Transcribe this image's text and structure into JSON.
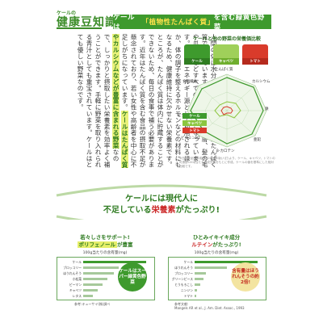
{
  "header": {
    "tag_small": "ケールの",
    "tag_big": "健康豆知識",
    "headline_pre": "ケールは",
    "headline_accent": "「植物性たんぱく質」",
    "headline_post": "を含む緑黄色野菜"
  },
  "body_text": {
    "p1": "人間の体は水分を除くと、ほとんどがたんぱく質でできています。筋肉、内臓、皮膚、髪の毛や爪、骨などすべての体の材料となっています。また、エネルギー源として利用されるほか、体の調子を整えるホルモンなどの材料にもなるため、健康維持に欠かせない栄養素です。",
    "p2": "ところが、たんぱく質は体内に貯蔵することができないため、毎日の食事で補う必要があります。近年はたんぱく質を含む食品の摂取不足が懸念されており、若い女性や高齢者を中心に不足しがちになっています。",
    "hl": "ケールはたんぱく質やカルシウムなどが豊富に含まれる野菜",
    "p3": "なので、しっかりと摂取したい栄養素を効率よく補うことができます。手軽に野菜を取り入れられる青汁としても重宝されています。ケールはとても優しい野菜なのです。"
  },
  "chart": {
    "title": "ケールと他の野菜の栄養価比較",
    "vegetables": [
      {
        "name": "ケール",
        "color": "#3e9a2d"
      },
      {
        "name": "キャベツ",
        "color": "#8cc63f"
      },
      {
        "name": "トマト",
        "color": "#d93b2b"
      }
    ],
    "axes": [
      "たんぱく質",
      "カルシウム",
      "鉄",
      "亜鉛",
      "β-カロテン",
      "ビタミンB1",
      "ビタミンC",
      "食物繊維"
    ],
    "legend": [
      "ケール",
      "キャベツ",
      "トマト"
    ],
    "footnote": "※日本食品標準成分表2020年版(八訂)より、ケール、キャベツ、トマトの可食部100g当たりの成分値をもとに作成。ケールの値を基準にした相対比較です。"
  },
  "middle": {
    "line1": "ケールには現代人に",
    "line2_pre": "不足している",
    "line2_red": "栄養素",
    "line2_post": "がたっぷり!"
  },
  "left_panel": {
    "cap1": "若々しさをサポート!",
    "cap2": "ポリフェノール",
    "cap3": "が豊富",
    "bar_title": "100g当たりの含有量(mg)",
    "rows": [
      "ケール",
      "ブロッコリー",
      "ほうれんそう",
      "小松菜",
      "ピーマン",
      "キャベツ",
      "レタス"
    ],
    "callout": "ケールはスーパー緑黄色野菜",
    "ref": "参考:キューサイ(株)調べ"
  },
  "right_panel": {
    "cap1": "ひとみイキイキ成分",
    "cap2": "ルテイン",
    "cap3": "がたっぷり!",
    "bar_title": "100g当たりの含有量(mg)",
    "rows": [
      "ケール",
      "ほうれんそう",
      "ブロッコリー",
      "グリーンピース",
      "とうもろこし",
      "ニンジン",
      "トマト"
    ],
    "callout": "含有量はほうれんそうの約2倍!",
    "ref1": "参考文献:",
    "ref2": "Mangels AR et al., J. Am. Diet. Assoc., 1993"
  }
}
